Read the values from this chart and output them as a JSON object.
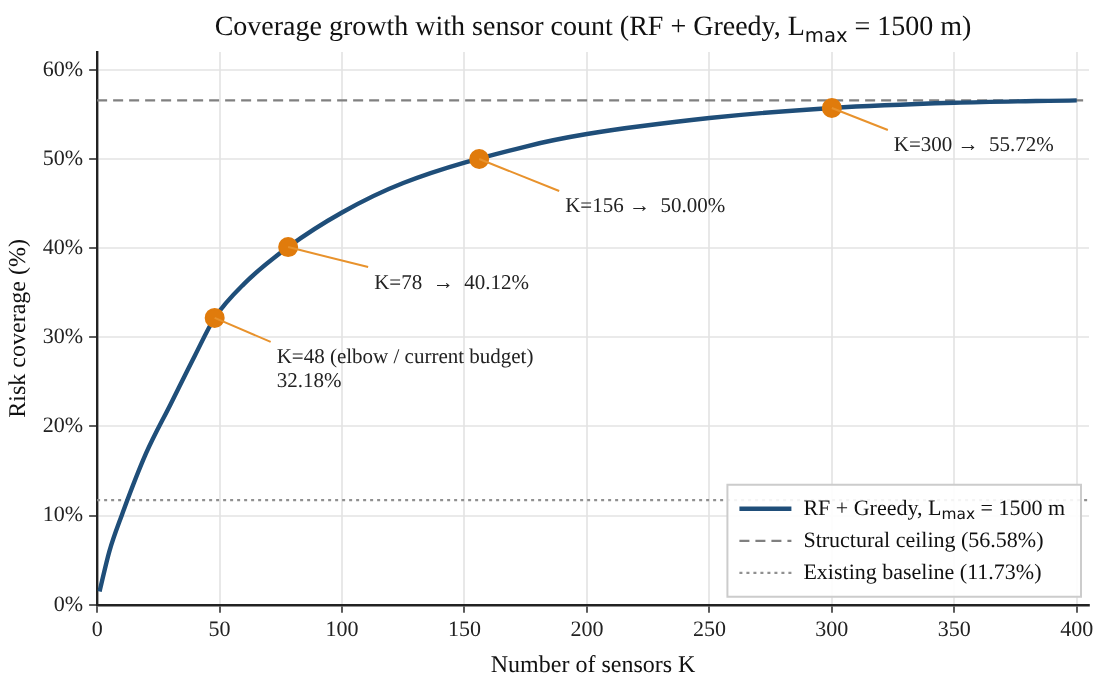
{
  "chart_data": {
    "type": "line",
    "title": "Coverage growth with sensor count (RF + Greedy, L$_{max}$ = 1500 m)",
    "xlabel": "Number of sensors K",
    "ylabel": "Risk coverage (%)",
    "series": [
      {
        "name": "RF + Greedy, L$_{max}$ = 1500 m",
        "color": "#1f4e79",
        "marker": "none",
        "x": [
          1,
          5,
          10,
          20,
          30,
          40,
          48,
          60,
          78,
          100,
          125,
          175,
          200,
          250,
          300,
          350,
          400
        ],
        "values": [
          1.5,
          6,
          10,
          17,
          22.5,
          28,
          32.18,
          36,
          40.12,
          44,
          47.3,
          51.4,
          52.8,
          54.6,
          55.72,
          56.3,
          56.58
        ]
      },
      {
        "type": "scatter",
        "marker": "circle",
        "color": "#e07b0c",
        "x": [
          48,
          78,
          156,
          300
        ],
        "values": [
          32.18,
          40.12,
          50,
          55.72
        ]
      }
    ],
    "annotations": [
      {
        "text": "K=48 (elbow / current budget)\n32.18%",
        "x": 48,
        "y": 32.18
      },
      {
        "text": "K=78  →  40.12%",
        "x": 78,
        "y": 40.12
      },
      {
        "text": "K=156 →  50.00%",
        "x": 156,
        "y": 50
      },
      {
        "text": "K=300 →  55.72%",
        "x": 300,
        "y": 55.72
      }
    ],
    "ref_lines": [
      {
        "axis": "y",
        "value": 56.58,
        "label": "Structural ceiling (56.58%)",
        "color": "#808080",
        "line_style": "dashed"
      },
      {
        "axis": "y",
        "value": 11.73,
        "label": "Existing baseline (11.73%)",
        "color": "#909090",
        "line_style": "dotted"
      }
    ],
    "xlim": [
      0,
      405
    ],
    "ylim": [
      0,
      62
    ],
    "xticks": [
      0,
      50,
      100,
      150,
      200,
      250,
      300,
      350,
      400
    ],
    "yticks": [
      {
        "value": 0,
        "label": "0%"
      },
      {
        "value": 10,
        "label": "10%"
      },
      {
        "value": 20,
        "label": "20%"
      },
      {
        "value": 30,
        "label": "30%"
      },
      {
        "value": 40,
        "label": "40%"
      },
      {
        "value": 50,
        "label": "50%"
      },
      {
        "value": 60,
        "label": "60%"
      }
    ],
    "grid": true,
    "legend": "bottom right",
    "line_style": "solid"
  }
}
